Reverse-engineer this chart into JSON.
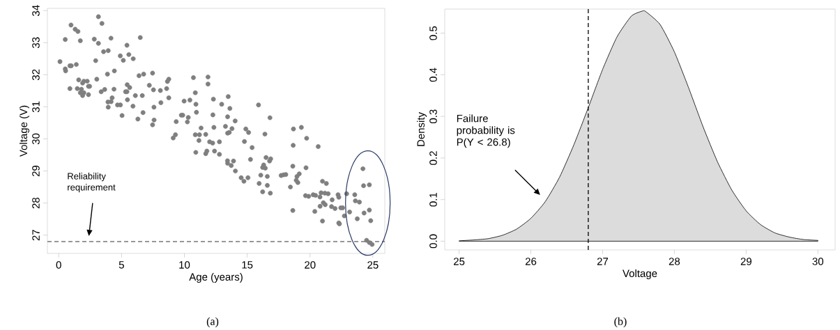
{
  "chart_data": [
    {
      "type": "scatter",
      "xlabel": "Age (years)",
      "ylabel": "Voltage (V)",
      "color": "#7f7f7f",
      "marker": "circle",
      "x": [
        0.1,
        0.52,
        0.98,
        1.31,
        1.53,
        1.72,
        0.52,
        0.55,
        0.89,
        1.0,
        1.4,
        1.59,
        2.0,
        2.27,
        1.9,
        0.89,
        1.48,
        1.81,
        1.72,
        2.0,
        1.9,
        2.37,
        2.46,
        2.37,
        2.83,
        3.16,
        3.44,
        3.16,
        2.94,
        3.03,
        3.57,
        3.94,
        4.16,
        3.88,
        4.43,
        3.38,
        3.66,
        4.4,
        3.92,
        4.17,
        4.25,
        3.94,
        4.68,
        4.91,
        5.04,
        4.9,
        5.14,
        5.43,
        5.58,
        5.93,
        5.45,
        5.65,
        5.32,
        5.43,
        6.1,
        5.47,
        5.91,
        6.65,
        6.49,
        6.39,
        6.76,
        7.47,
        7.21,
        7.54,
        8.09,
        8.59,
        8.65,
        8.76,
        8.76,
        8.13,
        7.58,
        6.71,
        6.3,
        7.59,
        7.47,
        9.35,
        9.29,
        9.11,
        9.76,
        10.72,
        11.88,
        11.88,
        10.87,
        9.98,
        10.44,
        10.92,
        10.96,
        9.87,
        10.31,
        10.24,
        12.31,
        13.49,
        12.97,
        13.62,
        12.27,
        13.44,
        14.04,
        11.33,
        12.35,
        13.27,
        13.79,
        13.44,
        13.57,
        10.87,
        11.2,
        11.7,
        11.16,
        12.01,
        12.25,
        12.79,
        10.91,
        11.7,
        11.79,
        12.4,
        12.79,
        14.89,
        15.11,
        14.78,
        15.39,
        15.9,
        16.81,
        16.41,
        15.26,
        13.43,
        13.44,
        13.91,
        13.73,
        14.06,
        16.5,
        16.87,
        16.78,
        16.31,
        16.23,
        16.44,
        18.68,
        19.31,
        19.73,
        18.66,
        18.63,
        19.68,
        14.52,
        14.74,
        15.06,
        16.08,
        16.6,
        15.95,
        16.6,
        16.23,
        16.84,
        17.7,
        17.89,
        18.07,
        18.96,
        19.14,
        18.9,
        19.03,
        18.44,
        20.65,
        18.63,
        19.64,
        19.89,
        20.25,
        20.44,
        20.79,
        20.88,
        21.18,
        21.44,
        20.99,
        21.3,
        21.06,
        21.21,
        20.8,
        20.38,
        20.99,
        21.76,
        21.71,
        21.99,
        22.23,
        22.29,
        22.45,
        22.6,
        22.73,
        22.29,
        22.34,
        22.91,
        23.15,
        23.56,
        23.61,
        23.93,
        23.76,
        24.21,
        24.26,
        24.72,
        24.3,
        24.72,
        24.83,
        24.5,
        24.72,
        24.94
      ],
      "values": [
        32.41,
        33.1,
        33.55,
        33.42,
        33.35,
        33.06,
        32.18,
        32.12,
        32.28,
        32.28,
        32.32,
        31.84,
        31.8,
        31.8,
        31.74,
        31.57,
        31.57,
        31.55,
        31.44,
        31.44,
        31.35,
        31.64,
        31.64,
        31.38,
        33.11,
        33.81,
        33.6,
        32.98,
        32.44,
        31.86,
        32.72,
        32.75,
        33.14,
        32.02,
        32.12,
        31.47,
        31.54,
        31.55,
        31.15,
        31.16,
        31.28,
        30.99,
        31.06,
        31.06,
        30.73,
        32.59,
        32.45,
        32.92,
        32.63,
        32.5,
        31.69,
        31.6,
        31.47,
        31.47,
        31.35,
        31.22,
        31.02,
        31.35,
        33.16,
        31.97,
        32.02,
        32.05,
        31.67,
        31.53,
        31.51,
        31.57,
        31.79,
        31.86,
        31.28,
        31.13,
        30.99,
        30.82,
        30.62,
        30.59,
        30.44,
        30.54,
        30.13,
        30.03,
        30.74,
        31.91,
        31.93,
        31.71,
        31.44,
        31.18,
        31.21,
        31.08,
        30.83,
        30.74,
        30.67,
        30.53,
        31.24,
        31.32,
        31.08,
        30.95,
        30.75,
        30.69,
        30.56,
        30.34,
        30.36,
        30.39,
        30.32,
        30.18,
        30.2,
        30.13,
        30.13,
        30.14,
        29.95,
        29.91,
        29.87,
        29.91,
        29.58,
        29.54,
        29.62,
        29.62,
        29.52,
        30.31,
        30.2,
        29.92,
        29.73,
        31.06,
        30.66,
        30.15,
        29.36,
        29.32,
        29.24,
        29.31,
        29.17,
        29.0,
        29.42,
        29.38,
        29.31,
        29.19,
        29.11,
        29.09,
        30.31,
        30.36,
        30.02,
        29.8,
        29.15,
        29.1,
        28.79,
        28.68,
        28.79,
        28.87,
        28.83,
        28.61,
        28.55,
        28.35,
        28.31,
        28.86,
        28.88,
        28.89,
        28.83,
        28.91,
        28.71,
        28.64,
        28.5,
        29.76,
        27.77,
        28.23,
        28.21,
        28.26,
        28.24,
        28.19,
        28.32,
        28.31,
        28.29,
        28.68,
        28.61,
        28.01,
        27.95,
        27.9,
        27.74,
        27.44,
        28.1,
        27.89,
        27.83,
        28.26,
        28.18,
        27.85,
        27.85,
        27.6,
        27.38,
        27.35,
        28.29,
        27.72,
        28.26,
        28.07,
        28.03,
        27.51,
        29.07,
        28.54,
        28.57,
        27.69,
        27.78,
        27.45,
        26.84,
        26.77,
        26.71
      ],
      "xlim": [
        -0.9,
        25.95
      ],
      "ylim": [
        26.43,
        34.07
      ],
      "xticks": [
        0,
        5,
        10,
        15,
        20,
        25
      ],
      "yticks": [
        27,
        28,
        29,
        30,
        31,
        32,
        33,
        34
      ],
      "ref_lines": [
        {
          "axis": "y",
          "value": 26.8,
          "line_style": "dashed",
          "color": "#333333"
        }
      ],
      "annotations": [
        "Reliability requirement",
        "(a)"
      ]
    },
    {
      "type": "area",
      "xlabel": "Voltage",
      "ylabel": "Density",
      "color": "#dcdcdc",
      "x": [
        25.0,
        25.2,
        25.4,
        25.6,
        25.8,
        26.0,
        26.2,
        26.4,
        26.6,
        26.8,
        27.0,
        27.2,
        27.4,
        27.55,
        27.6,
        27.8,
        28.0,
        28.2,
        28.4,
        28.6,
        28.8,
        29.0,
        29.2,
        29.4,
        29.6,
        29.8,
        30.0
      ],
      "values": [
        0.001,
        0.003,
        0.006,
        0.014,
        0.029,
        0.055,
        0.095,
        0.154,
        0.232,
        0.321,
        0.413,
        0.491,
        0.541,
        0.553,
        0.552,
        0.521,
        0.455,
        0.368,
        0.275,
        0.191,
        0.123,
        0.073,
        0.04,
        0.02,
        0.01,
        0.004,
        0.002
      ],
      "xlim": [
        24.8,
        30.24
      ],
      "ylim": [
        -0.021,
        0.558
      ],
      "xticks": [
        25,
        26,
        27,
        28,
        29,
        30
      ],
      "yticks": [
        {
          "value": 0,
          "label": "0.0"
        },
        0.1,
        0.2,
        0.3,
        0.4,
        0.5
      ],
      "ref_lines": [
        {
          "axis": "x",
          "value": 26.8,
          "line_style": "dashed",
          "color": "#000000"
        }
      ],
      "annotations": [
        "Failure probability is P(Y < 26.8)",
        "(b)"
      ]
    }
  ]
}
